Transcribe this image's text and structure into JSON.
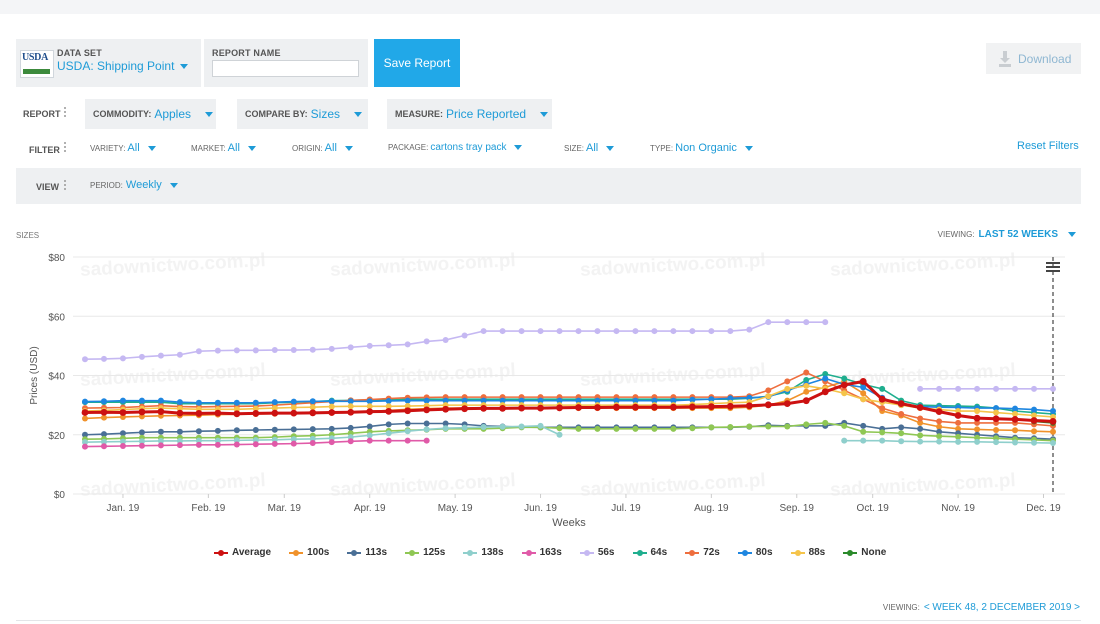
{
  "header": {
    "dataset_label": "DATA SET",
    "dataset_value": "USDA: Shipping Point",
    "logo_text": "USDA",
    "report_name_label": "REPORT NAME",
    "report_name_value": "",
    "save_label": "Save Report",
    "download_label": "Download"
  },
  "report_row": {
    "label": "REPORT",
    "commodity_label": "COMMODITY:",
    "commodity_value": "Apples",
    "compare_label": "COMPARE BY:",
    "compare_value": "Sizes",
    "measure_label": "MEASURE:",
    "measure_value": "Price Reported"
  },
  "filter_row": {
    "label": "FILTER",
    "items": [
      {
        "key": "VARIETY:",
        "value": "All"
      },
      {
        "key": "MARKET:",
        "value": "All"
      },
      {
        "key": "ORIGIN:",
        "value": "All"
      },
      {
        "key": "PACKAGE:",
        "value": "cartons tray pack"
      },
      {
        "key": "SIZE:",
        "value": "All"
      },
      {
        "key": "TYPE:",
        "value": "Non Organic"
      }
    ],
    "reset_label": "Reset Filters"
  },
  "view_row": {
    "label": "VIEW",
    "period_label": "PERIOD:",
    "period_value": "Weekly"
  },
  "chart_header": {
    "sizes_label": "SIZES",
    "viewing_label": "VIEWING:",
    "viewing_value": "LAST 52 WEEKS"
  },
  "footer": {
    "viewing_label": "VIEWING:",
    "viewing_value": "< WEEK 48, 2 DECEMBER 2019 >"
  },
  "watermark_text": "sadownictwo.com.pl",
  "colors": {
    "accent": "#1e9bd7",
    "save_button": "#21a8e8"
  },
  "chart_data": {
    "type": "line",
    "title": "",
    "xlabel": "Weeks",
    "ylabel": "Prices (USD)",
    "ylim": [
      0,
      80
    ],
    "yticks": [
      "$0",
      "$20",
      "$40",
      "$60",
      "$80"
    ],
    "xtick_labels": [
      "Jan. 19",
      "Feb. 19",
      "Mar. 19",
      "Apr. 19",
      "May. 19",
      "Jun. 19",
      "Jul. 19",
      "Aug. 19",
      "Sep. 19",
      "Oct. 19",
      "Nov. 19",
      "Dec. 19"
    ],
    "xtick_weeks": [
      3,
      7.5,
      11.5,
      16,
      20.5,
      25,
      29.5,
      34,
      38.5,
      42.5,
      47,
      51.5
    ],
    "x_week_range": [
      1,
      52
    ],
    "grid": true,
    "legend_position": "bottom",
    "series": [
      {
        "name": "Average",
        "color": "#cc1111",
        "values": [
          27.5,
          27.6,
          27.5,
          27.7,
          27.8,
          27.3,
          27.2,
          27.3,
          27.1,
          27.2,
          27.3,
          27.3,
          27.4,
          27.5,
          27.6,
          27.8,
          27.9,
          28.1,
          28.4,
          28.6,
          28.8,
          28.9,
          28.9,
          29.0,
          29.0,
          29.1,
          29.2,
          29.2,
          29.3,
          29.3,
          29.3,
          29.3,
          29.4,
          29.5,
          29.6,
          29.8,
          30.1,
          30.5,
          31.5,
          34.5,
          36.8,
          38.0,
          32.0,
          30.5,
          29.2,
          27.8,
          26.5,
          25.6,
          25.4,
          25.2,
          24.8,
          24.5
        ]
      },
      {
        "name": "100s",
        "color": "#f0922b",
        "values": [
          25.5,
          25.8,
          26.0,
          26.2,
          26.4,
          26.5,
          26.6,
          26.8,
          26.9,
          27.0,
          27.1,
          27.2,
          27.3,
          27.4,
          27.6,
          27.9,
          28.2,
          28.6,
          28.8,
          29.0,
          29.0,
          29.0,
          29.0,
          29.0,
          29.0,
          29.0,
          29.0,
          29.0,
          29.0,
          29.0,
          29.0,
          29.0,
          29.0,
          29.0,
          29.0,
          29.3,
          30.0,
          31.5,
          34.5,
          36.0,
          38.0,
          34.0,
          28.0,
          26.5,
          24.0,
          22.7,
          22.0,
          21.8,
          21.6,
          21.5,
          21.2,
          21.0
        ]
      },
      {
        "name": "113s",
        "color": "#4a6f96",
        "values": [
          20.0,
          20.2,
          20.5,
          20.8,
          21.0,
          21.0,
          21.2,
          21.3,
          21.5,
          21.6,
          21.7,
          21.8,
          21.9,
          22.0,
          22.3,
          22.8,
          23.5,
          23.8,
          23.8,
          23.8,
          23.5,
          23.0,
          22.8,
          22.6,
          22.5,
          22.5,
          22.5,
          22.5,
          22.5,
          22.5,
          22.5,
          22.5,
          22.5,
          22.5,
          22.5,
          22.7,
          23.2,
          23.0,
          23.0,
          23.0,
          24.0,
          23.0,
          22.0,
          22.5,
          22.0,
          21.0,
          20.5,
          20.0,
          19.5,
          19.0,
          18.8,
          18.5
        ]
      },
      {
        "name": "125s",
        "color": "#8fc754",
        "values": [
          18.5,
          18.6,
          18.8,
          19.0,
          19.0,
          19.0,
          19.0,
          19.0,
          19.0,
          19.0,
          19.2,
          19.5,
          19.7,
          20.0,
          20.5,
          21.0,
          21.3,
          21.5,
          21.7,
          22.0,
          22.0,
          22.0,
          22.2,
          22.5,
          22.5,
          22.2,
          22.0,
          22.0,
          22.0,
          22.0,
          22.0,
          22.0,
          22.2,
          22.5,
          22.6,
          22.8,
          22.8,
          22.8,
          23.5,
          24.0,
          23.0,
          21.0,
          20.8,
          20.5,
          19.8,
          19.5,
          19.3,
          19.0,
          18.8,
          18.5,
          18.3,
          18.0
        ]
      },
      {
        "name": "138s",
        "color": "#8fcfcc",
        "values": [
          17.5,
          17.6,
          17.7,
          17.8,
          17.9,
          17.9,
          18.0,
          18.0,
          18.1,
          18.2,
          18.3,
          18.5,
          18.6,
          18.8,
          19.2,
          19.8,
          20.5,
          21.2,
          21.8,
          22.2,
          22.4,
          22.6,
          22.7,
          22.8,
          23.0,
          20.0,
          null,
          null,
          null,
          null,
          null,
          null,
          null,
          null,
          null,
          null,
          null,
          null,
          null,
          null,
          18.0,
          18.0,
          18.0,
          17.8,
          17.7,
          17.7,
          17.6,
          17.6,
          17.5,
          17.4,
          17.3,
          17.2
        ]
      },
      {
        "name": "163s",
        "color": "#e05aa8",
        "values": [
          16.0,
          16.1,
          16.2,
          16.3,
          16.4,
          16.5,
          16.6,
          16.6,
          16.7,
          16.8,
          16.9,
          17.0,
          17.2,
          17.5,
          17.8,
          18.0,
          18.0,
          18.0,
          18.0,
          null,
          null,
          null,
          null,
          null,
          null,
          null,
          null,
          null,
          null,
          null,
          null,
          null,
          null,
          null,
          null,
          null,
          null,
          null,
          null,
          null,
          null,
          null,
          null,
          null,
          null,
          null,
          null,
          null,
          null,
          null,
          null,
          null
        ]
      },
      {
        "name": "56s",
        "color": "#c5b8f2",
        "values": [
          45.5,
          45.6,
          45.8,
          46.3,
          46.7,
          47.0,
          48.2,
          48.4,
          48.5,
          48.5,
          48.6,
          48.6,
          48.7,
          49.0,
          49.5,
          50.0,
          50.2,
          50.5,
          51.5,
          52.0,
          53.5,
          55.0,
          55.0,
          55.0,
          55.0,
          55.0,
          55.0,
          55.0,
          55.0,
          55.0,
          55.0,
          55.0,
          55.0,
          55.0,
          55.0,
          55.5,
          58.0,
          58.0,
          58.0,
          58.0,
          null,
          null,
          null,
          null,
          35.5,
          35.5,
          35.5,
          35.5,
          35.5,
          35.5,
          35.5,
          35.5
        ]
      },
      {
        "name": "64s",
        "color": "#1fae8e",
        "values": [
          31.0,
          31.0,
          31.0,
          31.0,
          31.0,
          30.5,
          30.5,
          30.5,
          30.5,
          30.5,
          30.8,
          31.0,
          31.2,
          31.5,
          31.6,
          31.8,
          31.8,
          32.0,
          32.0,
          32.0,
          32.0,
          32.0,
          32.0,
          32.0,
          32.0,
          32.0,
          32.0,
          32.0,
          32.0,
          32.0,
          32.0,
          32.0,
          32.0,
          32.0,
          32.0,
          32.3,
          33.0,
          34.5,
          38.5,
          40.5,
          39.0,
          37.0,
          35.5,
          31.5,
          30.0,
          29.8,
          29.7,
          29.5,
          29.0,
          28.0,
          27.5,
          27.0
        ]
      },
      {
        "name": "72s",
        "color": "#ee6e3e",
        "values": [
          29.0,
          29.1,
          29.2,
          29.5,
          29.8,
          29.5,
          29.4,
          29.5,
          29.6,
          29.7,
          30.0,
          30.4,
          30.8,
          31.2,
          31.6,
          31.9,
          32.2,
          32.5,
          32.6,
          32.7,
          32.7,
          32.7,
          32.7,
          32.7,
          32.7,
          32.7,
          32.7,
          32.7,
          32.7,
          32.7,
          32.7,
          32.7,
          32.7,
          32.7,
          32.7,
          33.0,
          35.0,
          38.0,
          41.0,
          38.0,
          35.0,
          32.0,
          29.0,
          27.0,
          25.5,
          24.5,
          24.0,
          24.0,
          24.0,
          24.0,
          23.5,
          23.0
        ]
      },
      {
        "name": "80s",
        "color": "#1e86e0",
        "values": [
          31.2,
          31.3,
          31.5,
          31.5,
          31.5,
          31.0,
          30.8,
          30.8,
          30.8,
          30.8,
          31.0,
          31.2,
          31.3,
          31.3,
          31.3,
          31.3,
          31.4,
          31.5,
          31.5,
          31.5,
          31.5,
          31.5,
          31.5,
          31.5,
          31.5,
          31.5,
          31.5,
          31.5,
          31.5,
          31.5,
          31.5,
          31.5,
          31.8,
          32.0,
          32.3,
          32.5,
          32.8,
          35.0,
          37.0,
          39.0,
          37.0,
          36.0,
          32.5,
          30.0,
          29.5,
          29.3,
          29.2,
          29.0,
          29.0,
          28.8,
          28.5,
          28.0
        ]
      },
      {
        "name": "88s",
        "color": "#f5c44a",
        "values": [
          28.0,
          28.2,
          28.5,
          28.8,
          29.0,
          28.8,
          28.6,
          28.6,
          28.6,
          28.8,
          29.0,
          29.2,
          29.3,
          29.5,
          29.6,
          29.6,
          29.6,
          29.7,
          29.8,
          30.0,
          30.0,
          30.0,
          30.0,
          30.0,
          30.0,
          30.0,
          30.0,
          30.0,
          30.0,
          30.0,
          30.0,
          30.0,
          30.2,
          30.5,
          30.8,
          31.0,
          33.0,
          35.5,
          36.5,
          35.5,
          34.0,
          32.0,
          31.0,
          30.0,
          29.0,
          28.5,
          28.0,
          28.0,
          27.5,
          27.0,
          26.5,
          26.0
        ]
      },
      {
        "name": "None",
        "color": "#2a8a2a",
        "values": [
          null,
          null,
          null,
          null,
          null,
          null,
          null,
          null,
          null,
          null,
          null,
          null,
          null,
          null,
          null,
          null,
          null,
          null,
          null,
          null,
          null,
          null,
          null,
          null,
          null,
          null,
          null,
          null,
          null,
          null,
          null,
          null,
          null,
          null,
          null,
          null,
          null,
          null,
          null,
          null,
          null,
          null,
          null,
          null,
          null,
          null,
          null,
          null,
          null,
          null,
          24.5,
          24.0
        ]
      }
    ]
  }
}
